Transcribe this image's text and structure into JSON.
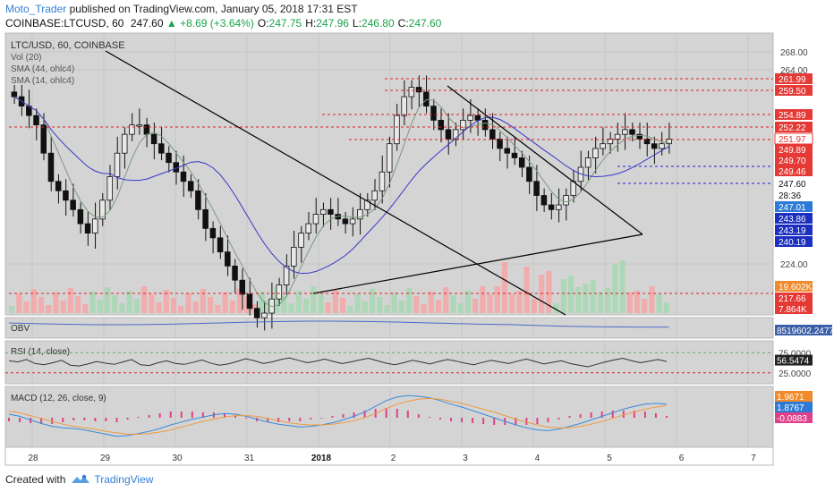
{
  "header": {
    "username": "Moto_Trader",
    "published_text": "published on TradingView.com, January 05, 2018 17:31 EST",
    "symbol": "COINBASE:LTCUSD, 60",
    "last": "247.60",
    "change": "+8.69 (+3.64%)",
    "o_label": "O:",
    "o": "247.75",
    "h_label": "H:",
    "h": "247.96",
    "l_label": "L:",
    "l": "246.80",
    "c_label": "C:",
    "c": "247.60"
  },
  "footer": {
    "created_with": "Created with",
    "brand": "TradingView"
  },
  "colors": {
    "up": "#2a8a3a",
    "down": "#111111",
    "vol_up": "#a8d8b4",
    "vol_down": "#f4a8a8",
    "sma_fast": "#7a9a7a",
    "sma_slow": "#3838c8",
    "rsi_line": "#333333",
    "obv_line": "#4a6ac8",
    "macd_line": "#3a8ad8",
    "signal_line": "#f09a40",
    "hist": "#e0408a",
    "pane_bg": "#d4d4d4",
    "red_level": "#e02020",
    "blue_level": "#2020d0"
  },
  "chart_data": [
    {
      "type": "candlestick",
      "title": "LTC/USD, 60, COINBASE",
      "x": [
        "28",
        "29",
        "30",
        "31",
        "2018",
        "2",
        "3",
        "4",
        "5",
        "6",
        "7"
      ],
      "y_ticks": [
        "268.00",
        "264.00",
        "224.00"
      ],
      "ylim": [
        212,
        270
      ],
      "indicator_labels": [
        "Vol (20)",
        "SMA (44, ohlc4)",
        "SMA (14, ohlc4)"
      ],
      "closes": [
        258,
        256,
        254,
        252,
        246,
        240,
        238,
        236,
        234,
        231,
        229,
        232,
        236,
        241,
        246,
        250,
        252,
        252,
        250,
        248,
        246,
        244,
        242,
        240,
        238,
        234,
        230,
        228,
        225,
        222,
        219,
        216,
        213,
        211,
        212,
        215,
        218,
        222,
        226,
        229,
        231,
        233,
        234,
        233,
        232,
        231,
        232,
        234,
        236,
        238,
        242,
        248,
        254,
        258,
        260,
        259,
        256,
        253,
        251,
        249,
        251,
        253,
        254,
        253,
        251,
        249,
        247,
        246,
        245,
        243,
        240,
        237,
        235,
        234,
        235,
        237,
        240,
        243,
        245,
        247,
        248,
        249,
        250,
        251,
        250,
        249,
        248,
        247,
        248,
        249
      ],
      "price_labels": [
        {
          "value": "261.99",
          "kind": "red"
        },
        {
          "value": "259.50",
          "kind": "red"
        },
        {
          "value": "254.89",
          "kind": "red"
        },
        {
          "value": "252.22",
          "kind": "red"
        },
        {
          "value": "251.97",
          "kind": "red-outline"
        },
        {
          "value": "249.89",
          "kind": "red"
        },
        {
          "value": "249.70",
          "kind": "red"
        },
        {
          "value": "249.46",
          "kind": "red"
        },
        {
          "value": "247.60",
          "kind": "white"
        },
        {
          "value": "28:36",
          "kind": "white"
        },
        {
          "value": "247.01",
          "kind": "blue"
        },
        {
          "value": "243.86",
          "kind": "blue-dark"
        },
        {
          "value": "243.19",
          "kind": "blue-dark"
        },
        {
          "value": "240.19",
          "kind": "blue-dark"
        },
        {
          "value": "19.602K",
          "kind": "orange"
        },
        {
          "value": "217.66",
          "kind": "red"
        },
        {
          "value": "7.864K",
          "kind": "red"
        }
      ]
    },
    {
      "type": "line",
      "title": "OBV",
      "value_label": "8519602.2477"
    },
    {
      "type": "line",
      "title": "RSI (14, close)",
      "y_ticks": [
        "75.0000",
        "25.0000"
      ],
      "ylim": [
        0,
        100
      ],
      "value_label": "56.5474",
      "values": [
        55,
        52,
        58,
        48,
        45,
        50,
        56,
        44,
        42,
        47,
        53,
        49,
        46,
        52,
        58,
        45,
        43,
        50,
        55,
        48,
        46,
        51,
        57,
        49,
        44,
        47,
        53,
        60,
        55,
        48,
        52,
        58,
        62,
        56,
        50,
        54,
        59,
        53,
        48,
        52,
        57,
        61,
        55,
        49,
        45,
        50,
        56,
        52,
        47,
        53,
        58,
        54,
        49,
        45,
        51,
        56,
        52,
        48,
        54,
        59,
        53,
        47,
        51,
        55,
        48,
        44,
        40,
        46,
        52,
        57,
        61,
        55,
        50,
        54,
        58,
        53
      ]
    },
    {
      "type": "line",
      "title": "MACD (12, 26, close, 9)",
      "value_labels": [
        "1.9671",
        "1.8767",
        "-0.0883"
      ],
      "macd": [
        0.5,
        0.2,
        -0.3,
        -0.8,
        -1.2,
        -1.4,
        -1.5,
        -1.7,
        -2.0,
        -2.3,
        -2.6,
        -2.5,
        -2.2,
        -1.9,
        -1.5,
        -1.0,
        -0.6,
        -0.2,
        0.1,
        0.4,
        0.6,
        0.5,
        0.2,
        -0.2,
        -0.6,
        -0.9,
        -1.1,
        -1.3,
        -1.2,
        -1.0,
        -0.7,
        -0.3,
        0.2,
        0.8,
        1.6,
        2.4,
        2.9,
        3.1,
        3.0,
        2.8,
        2.4,
        1.9,
        1.5,
        1.0,
        0.5,
        0.0,
        -0.5,
        -1.0,
        -1.4,
        -1.7,
        -1.8,
        -1.6,
        -1.2,
        -0.8,
        -0.3,
        0.2,
        0.7,
        1.2,
        1.6,
        1.9,
        2.0,
        1.9
      ],
      "signal": [
        0.9,
        0.7,
        0.3,
        -0.1,
        -0.5,
        -0.9,
        -1.2,
        -1.4,
        -1.6,
        -1.9,
        -2.1,
        -2.3,
        -2.3,
        -2.2,
        -2.0,
        -1.7,
        -1.3,
        -0.9,
        -0.5,
        -0.2,
        0.1,
        0.3,
        0.3,
        0.2,
        -0.1,
        -0.4,
        -0.7,
        -0.9,
        -1.0,
        -1.0,
        -0.9,
        -0.7,
        -0.4,
        0.0,
        0.6,
        1.3,
        1.9,
        2.3,
        2.6,
        2.7,
        2.6,
        2.3,
        2.0,
        1.6,
        1.2,
        0.8,
        0.3,
        -0.2,
        -0.6,
        -1.0,
        -1.3,
        -1.4,
        -1.4,
        -1.2,
        -0.9,
        -0.5,
        -0.1,
        0.4,
        0.8,
        1.2,
        1.5,
        1.7
      ]
    }
  ]
}
